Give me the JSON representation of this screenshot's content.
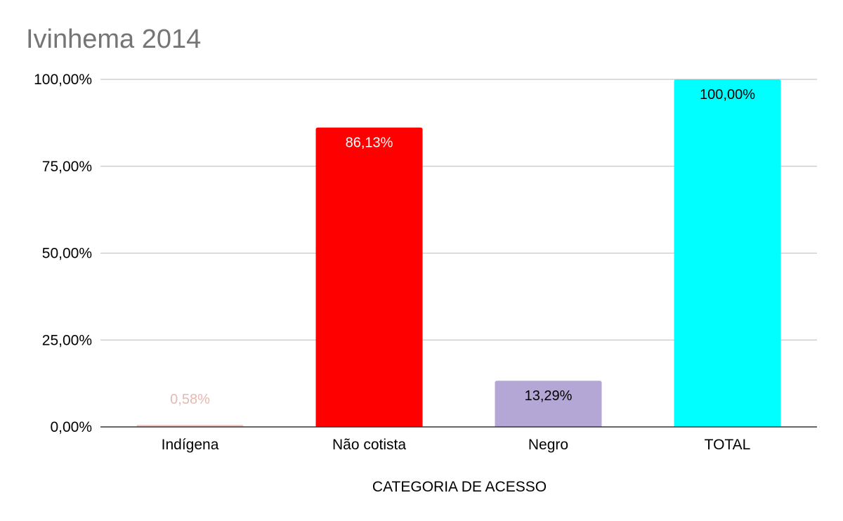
{
  "chart_data": {
    "type": "bar",
    "title": "Ivinhema 2014",
    "xlabel": "CATEGORIA DE ACESSO",
    "ylabel": "",
    "ylim": [
      0,
      100
    ],
    "y_ticks": [
      0,
      25,
      50,
      75,
      100
    ],
    "y_tick_labels": [
      "0,00%",
      "25,00%",
      "50,00%",
      "75,00%",
      "100,00%"
    ],
    "grid": true,
    "legend": "none",
    "categories": [
      "Indígena",
      "Não cotista",
      "Negro",
      "TOTAL"
    ],
    "values": [
      0.58,
      86.13,
      13.29,
      100.0
    ],
    "data_labels": [
      "0,58%",
      "86,13%",
      "13,29%",
      "100,00%"
    ],
    "colors": [
      "#f4c7c3",
      "#ff0000",
      "#b4a7d6",
      "#00ffff"
    ],
    "label_colors": [
      "#e6b8b3",
      "#ffffff",
      "#000000",
      "#000000"
    ]
  }
}
